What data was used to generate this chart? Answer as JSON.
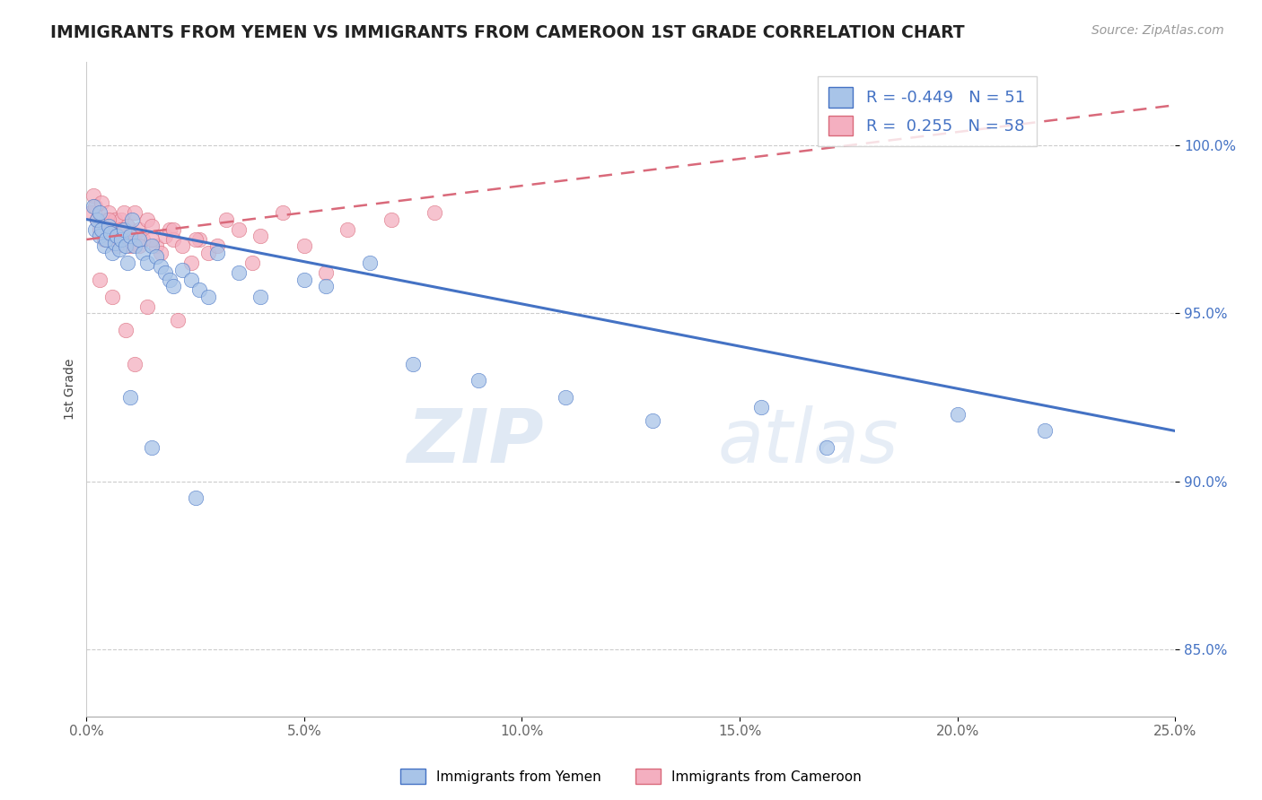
{
  "title": "IMMIGRANTS FROM YEMEN VS IMMIGRANTS FROM CAMEROON 1ST GRADE CORRELATION CHART",
  "source_text": "Source: ZipAtlas.com",
  "ylabel": "1st Grade",
  "xlim": [
    0.0,
    25.0
  ],
  "ylim": [
    83.0,
    102.5
  ],
  "xticks": [
    0.0,
    5.0,
    10.0,
    15.0,
    20.0,
    25.0
  ],
  "xtick_labels": [
    "0.0%",
    "5.0%",
    "10.0%",
    "15.0%",
    "20.0%",
    "25.0%"
  ],
  "yticks": [
    85.0,
    90.0,
    95.0,
    100.0
  ],
  "ytick_labels": [
    "85.0%",
    "90.0%",
    "95.0%",
    "100.0%"
  ],
  "legend_r_yemen": "-0.449",
  "legend_n_yemen": "51",
  "legend_r_cameroon": "0.255",
  "legend_n_cameroon": "58",
  "yemen_color": "#a8c4e8",
  "cameroon_color": "#f4afc0",
  "yemen_line_color": "#4472c4",
  "cameroon_line_color": "#d9697a",
  "watermark_zip": "ZIP",
  "watermark_atlas": "atlas",
  "yemen_line_x0": 0.0,
  "yemen_line_y0": 97.8,
  "yemen_line_x1": 25.0,
  "yemen_line_y1": 91.5,
  "cameroon_line_x0": 0.0,
  "cameroon_line_y0": 97.2,
  "cameroon_line_x1": 25.0,
  "cameroon_line_y1": 101.2,
  "yemen_scatter_x": [
    0.15,
    0.2,
    0.25,
    0.3,
    0.3,
    0.35,
    0.4,
    0.45,
    0.5,
    0.55,
    0.6,
    0.65,
    0.7,
    0.75,
    0.8,
    0.85,
    0.9,
    0.95,
    1.0,
    1.05,
    1.1,
    1.2,
    1.3,
    1.4,
    1.5,
    1.6,
    1.7,
    1.8,
    1.9,
    2.0,
    2.2,
    2.4,
    2.6,
    2.8,
    3.0,
    3.5,
    4.0,
    5.0,
    5.5,
    6.5,
    7.5,
    9.0,
    11.0,
    13.0,
    15.5,
    17.0,
    20.0,
    22.0,
    1.0,
    1.5,
    2.5
  ],
  "yemen_scatter_y": [
    98.2,
    97.5,
    97.8,
    98.0,
    97.3,
    97.5,
    97.0,
    97.2,
    97.6,
    97.4,
    96.8,
    97.1,
    97.3,
    96.9,
    97.2,
    97.5,
    97.0,
    96.5,
    97.3,
    97.8,
    97.0,
    97.2,
    96.8,
    96.5,
    97.0,
    96.7,
    96.4,
    96.2,
    96.0,
    95.8,
    96.3,
    96.0,
    95.7,
    95.5,
    96.8,
    96.2,
    95.5,
    96.0,
    95.8,
    96.5,
    93.5,
    93.0,
    92.5,
    91.8,
    92.2,
    91.0,
    92.0,
    91.5,
    92.5,
    91.0,
    89.5
  ],
  "cameroon_scatter_x": [
    0.1,
    0.15,
    0.2,
    0.25,
    0.3,
    0.35,
    0.4,
    0.45,
    0.5,
    0.55,
    0.6,
    0.65,
    0.7,
    0.75,
    0.8,
    0.85,
    0.9,
    0.95,
    1.0,
    1.05,
    1.1,
    1.2,
    1.3,
    1.4,
    1.5,
    1.6,
    1.7,
    1.8,
    1.9,
    2.0,
    2.2,
    2.4,
    2.6,
    2.8,
    3.0,
    3.5,
    4.0,
    1.0,
    1.5,
    2.0,
    0.5,
    0.8,
    1.2,
    2.5,
    3.2,
    4.5,
    5.0,
    6.0,
    7.0,
    8.0,
    0.3,
    0.6,
    0.9,
    1.1,
    1.4,
    2.1,
    3.8,
    5.5
  ],
  "cameroon_scatter_y": [
    98.0,
    98.5,
    98.2,
    97.8,
    97.5,
    98.3,
    97.2,
    97.8,
    98.0,
    97.5,
    97.3,
    97.8,
    97.0,
    97.5,
    97.8,
    98.0,
    97.2,
    97.6,
    97.4,
    97.1,
    98.0,
    97.5,
    97.2,
    97.8,
    97.6,
    97.0,
    96.8,
    97.3,
    97.5,
    97.2,
    97.0,
    96.5,
    97.2,
    96.8,
    97.0,
    97.5,
    97.3,
    97.0,
    97.2,
    97.5,
    97.8,
    97.5,
    97.0,
    97.2,
    97.8,
    98.0,
    97.0,
    97.5,
    97.8,
    98.0,
    96.0,
    95.5,
    94.5,
    93.5,
    95.2,
    94.8,
    96.5,
    96.2
  ]
}
